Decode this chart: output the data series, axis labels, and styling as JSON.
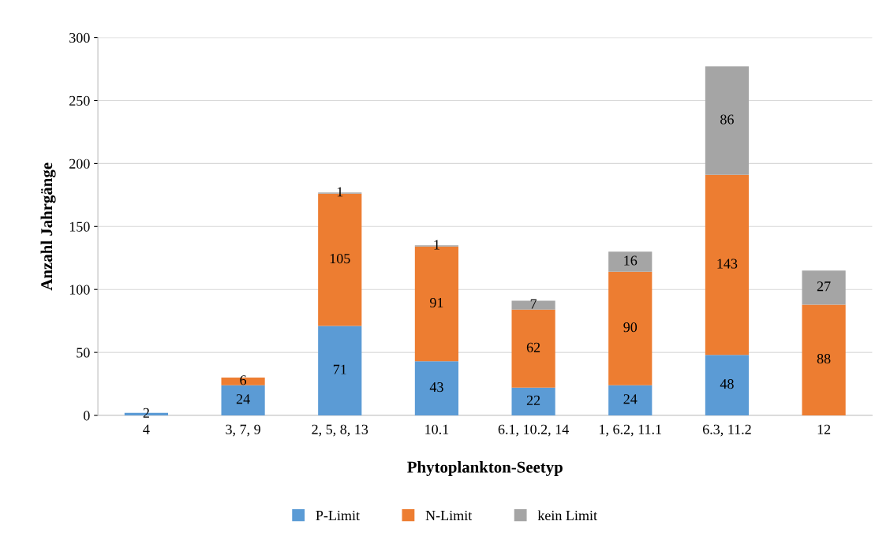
{
  "chart_data": {
    "type": "bar",
    "stacked": true,
    "xlabel": "Phytoplankton-Seetyp",
    "ylabel": "Anzahl Jahrgänge",
    "categories": [
      "4",
      "3, 7, 9",
      "2, 5, 8, 13",
      "10.1",
      "6.1, 10.2, 14",
      "1, 6.2, 11.1",
      "6.3, 11.2",
      "12"
    ],
    "series": [
      {
        "name": "P-Limit",
        "color": "#5b9bd5",
        "values": [
          2,
          24,
          71,
          43,
          22,
          24,
          48,
          null
        ]
      },
      {
        "name": "N-Limit",
        "color": "#ed7d31",
        "values": [
          null,
          6,
          105,
          91,
          62,
          90,
          143,
          88
        ]
      },
      {
        "name": "kein Limit",
        "color": "#a5a5a5",
        "values": [
          null,
          null,
          1,
          1,
          7,
          16,
          86,
          27
        ]
      }
    ],
    "ylim": [
      0,
      300
    ],
    "yticks": [
      0,
      50,
      100,
      150,
      200,
      250,
      300
    ],
    "grid": "y",
    "legend": "bottom",
    "data_labels": true
  }
}
